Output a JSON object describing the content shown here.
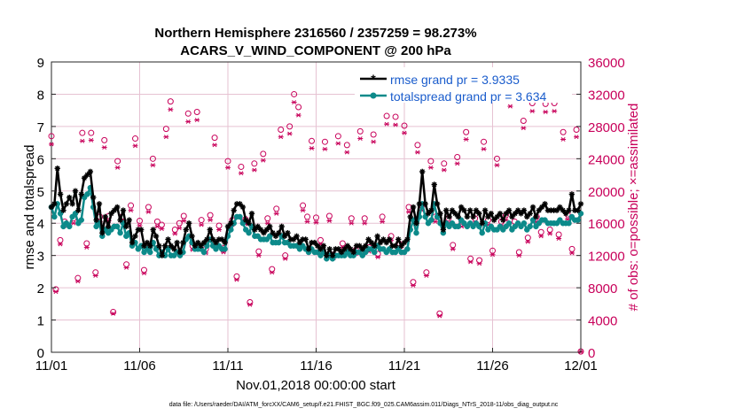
{
  "chart_data": {
    "type": "line",
    "title_line1": "Northern Hemisphere 2316560 / 2357259 = 98.273%",
    "title_line2": "ACARS_V_WIND_COMPONENT @ 200 hPa",
    "xlabel": "Nov.01,2018 00:00:00 start",
    "ylabel_left": "rmse and totalspread",
    "ylabel_right": "# of obs: o=possible; ×=assimilated",
    "footer": "data file: /Users/raeder/DAI/ATM_forcXX/CAM6_setup/f.e21.FHIST_BGC.f09_025.CAM6assim.011/Diags_NTrS_2018-11/obs_diag_output.nc",
    "x_range_days": [
      0,
      30
    ],
    "x_tick_values": [
      0,
      5,
      10,
      15,
      20,
      25,
      30
    ],
    "x_tick_labels": [
      "11/01",
      "11/06",
      "11/11",
      "11/16",
      "11/21",
      "11/26",
      "12/01"
    ],
    "ylim_left": [
      0,
      9
    ],
    "y_left_ticks": [
      "0",
      "1",
      "2",
      "3",
      "4",
      "5",
      "6",
      "7",
      "8",
      "9"
    ],
    "ylim_right": [
      0,
      36000
    ],
    "y_right_ticks": [
      "0",
      "4000",
      "8000",
      "12000",
      "16000",
      "20000",
      "24000",
      "28000",
      "32000",
      "36000"
    ],
    "legend": [
      "rmse grand pr = 3.9335",
      "totalspread grand pr = 3.634"
    ],
    "series": [
      {
        "name": "rmse",
        "color": "#000000",
        "values": [
          4.5,
          4.6,
          5.7,
          4.9,
          4.4,
          4.6,
          4.8,
          4.6,
          5.0,
          4.4,
          4.9,
          5.4,
          5.5,
          5.6,
          4.8,
          4.1,
          4.6,
          3.7,
          4.2,
          3.9,
          4.3,
          4.4,
          4.5,
          4.1,
          4.4,
          3.9,
          4.1,
          3.4,
          3.6,
          3.8,
          3.8,
          3.3,
          3.4,
          3.3,
          3.8,
          3.6,
          3.3,
          3.0,
          3.3,
          3.5,
          3.3,
          3.2,
          3.4,
          3.1,
          3.4,
          3.8,
          4.0,
          3.6,
          3.3,
          3.4,
          3.3,
          3.4,
          3.5,
          3.8,
          3.5,
          3.4,
          3.5,
          3.5,
          3.4,
          3.9,
          4.0,
          4.4,
          4.6,
          4.6,
          4.5,
          4.1,
          4.0,
          4.3,
          3.8,
          3.9,
          3.8,
          3.7,
          3.8,
          3.9,
          3.7,
          3.6,
          3.7,
          3.9,
          3.6,
          3.7,
          3.5,
          3.5,
          3.6,
          3.4,
          3.5,
          3.5,
          3.2,
          3.4,
          3.4,
          3.3,
          3.2,
          3.3,
          3.0,
          3.2,
          3.0,
          3.2,
          3.2,
          3.1,
          3.2,
          3.3,
          3.2,
          3.1,
          3.3,
          3.3,
          3.2,
          3.3,
          3.5,
          3.4,
          3.3,
          3.6,
          3.4,
          3.5,
          3.4,
          3.5,
          3.3,
          3.3,
          3.5,
          3.3,
          3.4,
          3.5,
          4.2,
          4.5,
          4.0,
          4.6,
          5.6,
          4.6,
          4.3,
          4.4,
          5.2,
          4.6,
          4.3,
          3.8,
          4.4,
          4.2,
          4.4,
          4.3,
          4.2,
          4.5,
          4.4,
          4.2,
          4.4,
          4.2,
          4.4,
          4.3,
          4.0,
          4.4,
          4.2,
          4.3,
          4.1,
          4.2,
          4.3,
          4.1,
          4.3,
          4.4,
          4.2,
          4.3,
          4.4,
          4.3,
          4.4,
          4.2,
          4.3,
          4.5,
          4.2,
          4.4,
          4.5,
          4.6,
          4.4,
          4.4,
          4.4,
          4.4,
          4.5,
          4.4,
          4.3,
          4.4,
          4.9,
          4.4,
          4.4,
          4.6
        ]
      },
      {
        "name": "totalspread",
        "color": "#0c8a8a",
        "values": [
          4.5,
          4.2,
          4.6,
          4.3,
          3.9,
          4.0,
          3.9,
          4.2,
          4.3,
          4.0,
          4.1,
          4.8,
          4.9,
          5.1,
          4.5,
          3.9,
          4.0,
          3.6,
          3.8,
          3.7,
          3.8,
          3.9,
          3.9,
          3.7,
          4.0,
          3.6,
          3.7,
          3.3,
          3.4,
          3.2,
          3.3,
          3.1,
          3.2,
          3.1,
          3.4,
          3.2,
          3.0,
          3.1,
          3.0,
          3.2,
          3.0,
          3.0,
          3.1,
          3.0,
          3.1,
          3.5,
          3.6,
          3.4,
          3.2,
          3.2,
          3.2,
          3.1,
          3.3,
          3.5,
          3.3,
          3.2,
          3.3,
          3.2,
          3.2,
          3.6,
          3.8,
          4.0,
          4.2,
          4.2,
          4.0,
          3.8,
          3.7,
          3.9,
          3.6,
          3.6,
          3.5,
          3.5,
          3.5,
          3.6,
          3.4,
          3.4,
          3.4,
          3.6,
          3.4,
          3.4,
          3.3,
          3.3,
          3.3,
          3.2,
          3.3,
          3.2,
          3.1,
          3.2,
          3.1,
          3.1,
          3.0,
          3.1,
          2.9,
          3.0,
          2.9,
          3.0,
          3.0,
          3.0,
          3.0,
          3.1,
          3.0,
          3.0,
          3.1,
          3.1,
          3.0,
          3.1,
          3.2,
          3.2,
          3.1,
          3.3,
          3.2,
          3.2,
          3.1,
          3.2,
          3.1,
          3.1,
          3.2,
          3.1,
          3.1,
          3.2,
          3.8,
          4.1,
          3.7,
          4.2,
          4.6,
          4.2,
          4.0,
          4.1,
          4.6,
          4.2,
          4.0,
          3.7,
          4.0,
          3.9,
          4.0,
          3.9,
          3.9,
          4.1,
          4.0,
          3.9,
          4.0,
          3.9,
          4.0,
          3.9,
          3.7,
          4.0,
          3.8,
          3.9,
          3.8,
          3.8,
          3.9,
          3.8,
          3.9,
          4.0,
          3.8,
          3.9,
          4.0,
          3.9,
          4.0,
          3.8,
          3.9,
          4.1,
          3.9,
          4.0,
          4.1,
          4.1,
          4.0,
          4.0,
          4.0,
          4.0,
          4.1,
          4.0,
          4.0,
          4.0,
          4.2,
          4.1,
          4.1,
          4.3
        ]
      },
      {
        "name": "obs_possible",
        "color": "#c8005a",
        "x_days": [
          0.0,
          0.25,
          0.5,
          0.75,
          1.25,
          1.5,
          1.75,
          2.0,
          2.25,
          2.5,
          2.75,
          3.0,
          3.25,
          3.5,
          3.75,
          4.0,
          4.25,
          4.5,
          4.75,
          5.0,
          5.25,
          5.5,
          5.75,
          6.0,
          6.25,
          6.5,
          6.75,
          7.0,
          7.25,
          7.5,
          7.75,
          8.0,
          8.25,
          8.5,
          8.75,
          9.0,
          9.25,
          9.5,
          9.75,
          10.0,
          10.25,
          10.5,
          10.75,
          11.0,
          11.25,
          11.5,
          11.75,
          12.0,
          12.25,
          12.5,
          12.75,
          13.0,
          13.25,
          13.5,
          13.75,
          14.0,
          14.25,
          14.5,
          14.75,
          15.0,
          15.25,
          15.5,
          15.75,
          16.0,
          16.25,
          16.5,
          16.75,
          17.0,
          17.25,
          17.5,
          17.75,
          18.0,
          18.25,
          18.5,
          18.75,
          19.0,
          19.25,
          19.5,
          19.75,
          20.0,
          20.25,
          20.5,
          20.75,
          21.0,
          21.25,
          21.5,
          21.75,
          22.0,
          22.25,
          22.5,
          22.75,
          23.0,
          23.25,
          23.5,
          23.75,
          24.0,
          24.25,
          24.5,
          24.75,
          25.0,
          25.25,
          25.5,
          25.75,
          26.0,
          26.25,
          26.5,
          26.75,
          27.0,
          27.25,
          27.5,
          27.75,
          28.0,
          28.25,
          28.5,
          28.75,
          29.0,
          29.25,
          29.5,
          29.75,
          30.0
        ],
        "values": [
          26800,
          7800,
          13900,
          16200,
          16600,
          9200,
          27200,
          13500,
          27200,
          9900,
          16800,
          26300,
          16900,
          5000,
          23700,
          16800,
          10900,
          18200,
          26500,
          16300,
          10200,
          18000,
          24000,
          16200,
          15800,
          27700,
          31100,
          15200,
          16000,
          16900,
          29600,
          13200,
          29800,
          16400,
          12800,
          17000,
          26600,
          15700,
          12900,
          23700,
          16400,
          9400,
          23000,
          16500,
          6200,
          23400,
          12500,
          24600,
          16600,
          10300,
          17800,
          27600,
          12000,
          28000,
          32000,
          30400,
          18200,
          16800,
          26200,
          16700,
          13900,
          26100,
          16900,
          12100,
          26800,
          13500,
          25700,
          16600,
          12700,
          27400,
          16600,
          13000,
          27000,
          12200,
          16800,
          29300,
          14400,
          29200,
          13400,
          28100,
          18000,
          8700,
          25700,
          18200,
          9900,
          23700,
          16800,
          4800,
          23400,
          16600,
          13300,
          24200,
          16200,
          27300,
          11600,
          16600,
          11400,
          26100,
          16400,
          12600,
          24000,
          16200,
          17000,
          31500,
          16200,
          12400,
          28700,
          14200,
          30900,
          16800,
          14900,
          30800,
          15200,
          30900,
          14600,
          27300,
          17100,
          12800,
          27600,
          100
        ]
      },
      {
        "name": "obs_assimilated",
        "color": "#c8005a",
        "x_days": [
          0.0,
          0.25,
          0.5,
          0.75,
          1.25,
          1.5,
          1.75,
          2.0,
          2.25,
          2.5,
          2.75,
          3.0,
          3.25,
          3.5,
          3.75,
          4.0,
          4.25,
          4.5,
          4.75,
          5.0,
          5.25,
          5.5,
          5.75,
          6.0,
          6.25,
          6.5,
          6.75,
          7.0,
          7.25,
          7.5,
          7.75,
          8.0,
          8.25,
          8.5,
          8.75,
          9.0,
          9.25,
          9.5,
          9.75,
          10.0,
          10.25,
          10.5,
          10.75,
          11.0,
          11.25,
          11.5,
          11.75,
          12.0,
          12.25,
          12.5,
          12.75,
          13.0,
          13.25,
          13.5,
          13.75,
          14.0,
          14.25,
          14.5,
          14.75,
          15.0,
          15.25,
          15.5,
          15.75,
          16.0,
          16.25,
          16.5,
          16.75,
          17.0,
          17.25,
          17.5,
          17.75,
          18.0,
          18.25,
          18.5,
          18.75,
          19.0,
          19.25,
          19.5,
          19.75,
          20.0,
          20.25,
          20.5,
          20.75,
          21.0,
          21.25,
          21.5,
          21.75,
          22.0,
          22.25,
          22.5,
          22.75,
          23.0,
          23.25,
          23.5,
          23.75,
          24.0,
          24.25,
          24.5,
          24.75,
          25.0,
          25.25,
          25.5,
          25.75,
          26.0,
          26.25,
          26.5,
          26.75,
          27.0,
          27.25,
          27.5,
          27.75,
          28.0,
          28.25,
          28.5,
          28.75,
          29.0,
          29.25,
          29.5,
          29.75,
          30.0
        ],
        "values": [
          25800,
          7500,
          13400,
          15700,
          16000,
          8800,
          26200,
          13000,
          26300,
          9500,
          16200,
          25400,
          16300,
          4800,
          22900,
          16200,
          10500,
          17600,
          25600,
          15700,
          9800,
          17400,
          23200,
          15600,
          15300,
          26700,
          30100,
          14700,
          15400,
          16300,
          28600,
          12700,
          28800,
          15800,
          12300,
          16400,
          25700,
          15200,
          12400,
          22900,
          15800,
          9000,
          22200,
          15900,
          5900,
          22600,
          12000,
          23800,
          16000,
          9900,
          17200,
          26700,
          11600,
          27100,
          31000,
          29400,
          17600,
          16200,
          25300,
          16100,
          13400,
          25200,
          16300,
          11700,
          25900,
          13000,
          24800,
          16000,
          12200,
          26500,
          16000,
          12500,
          26100,
          11800,
          16200,
          28300,
          13900,
          28200,
          12900,
          27200,
          17400,
          8300,
          24800,
          17600,
          9500,
          22900,
          16200,
          4500,
          22600,
          16000,
          12800,
          23400,
          15600,
          26400,
          11200,
          16000,
          11000,
          25200,
          15800,
          12100,
          23200,
          15600,
          16400,
          30500,
          15600,
          12000,
          27800,
          13700,
          29900,
          16200,
          14400,
          29800,
          14700,
          29900,
          14100,
          26400,
          16500,
          12300,
          26700,
          50
        ]
      }
    ]
  }
}
